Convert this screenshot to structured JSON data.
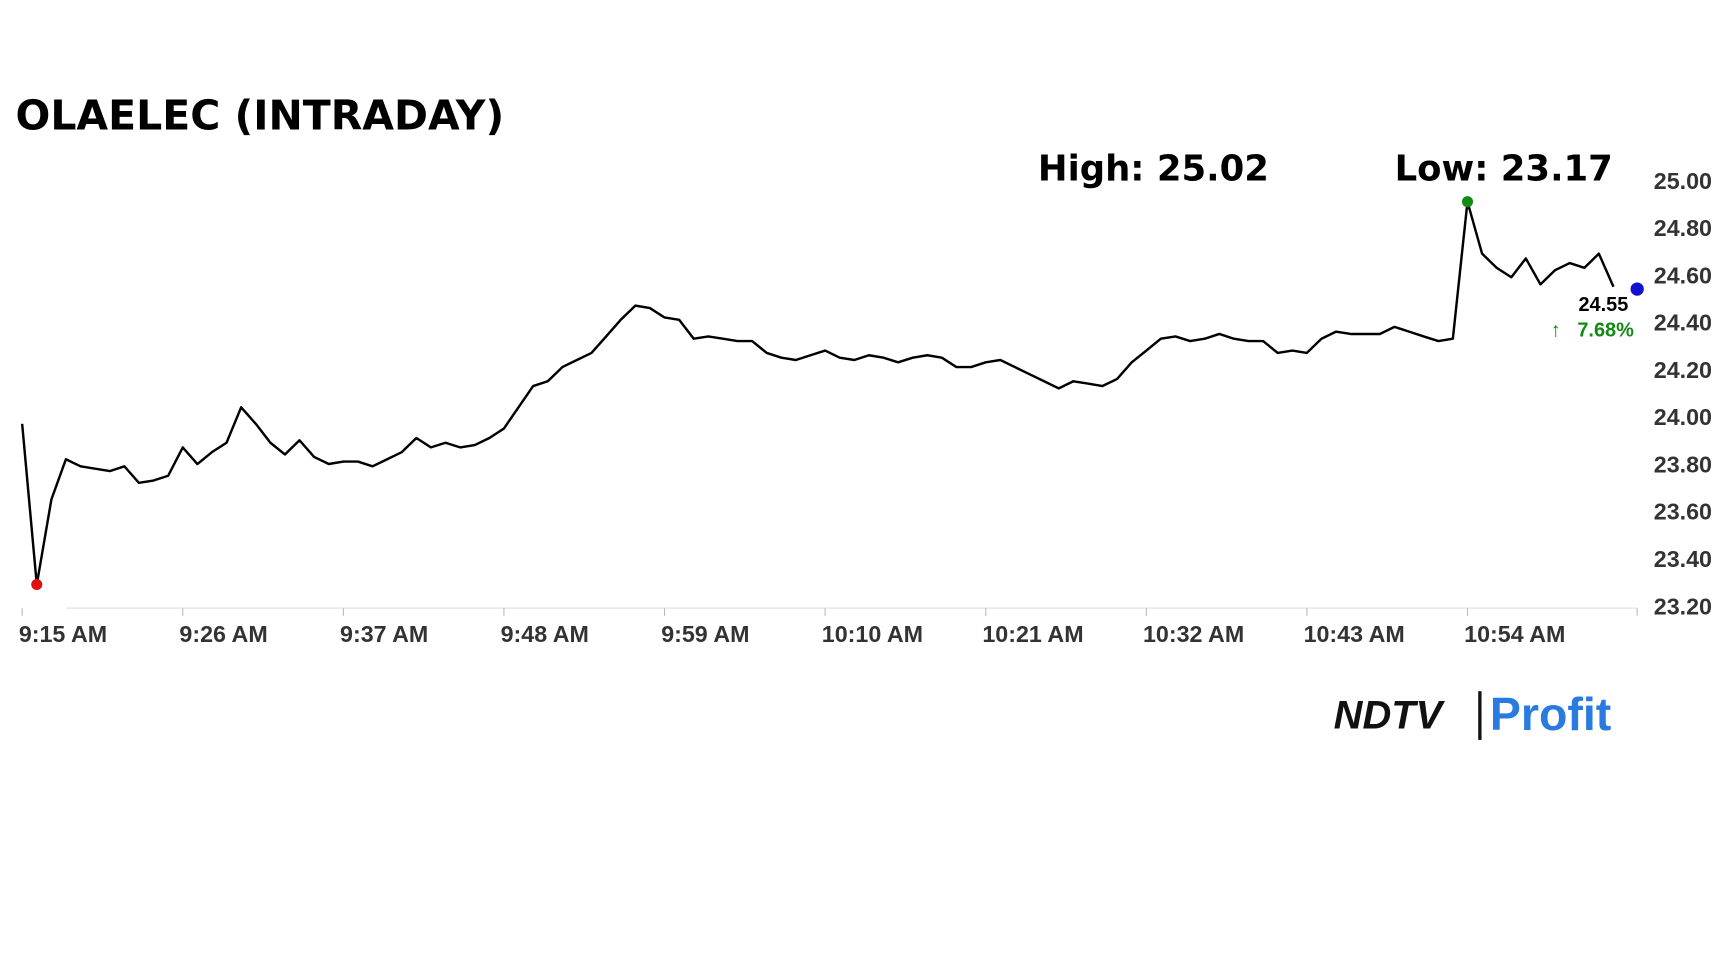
{
  "chart_data": {
    "type": "line",
    "title": "OLAELEC (INTRADAY)",
    "high_label": "High: 25.02",
    "low_label": "Low: 23.17",
    "last_price": 24.55,
    "change": {
      "value": 7.68,
      "label": "7.68%"
    },
    "brand": {
      "left": "NDTV",
      "right": "Profit"
    },
    "ylim": [
      23.2,
      25.0
    ],
    "yticks": [
      {
        "value": 23.2,
        "label": "23.20"
      },
      {
        "value": 23.4,
        "label": "23.40"
      },
      {
        "value": 23.6,
        "label": "23.60"
      },
      {
        "value": 23.8,
        "label": "23.80"
      },
      {
        "value": 24.0,
        "label": "24.00"
      },
      {
        "value": 24.2,
        "label": "24.20"
      },
      {
        "value": 24.4,
        "label": "24.40"
      },
      {
        "value": 24.6,
        "label": "24.60"
      },
      {
        "value": 24.8,
        "label": "24.80"
      },
      {
        "value": 25.0,
        "label": "25.00"
      }
    ],
    "x": [
      "9:15 AM",
      null,
      null,
      null,
      null,
      null,
      null,
      null,
      null,
      null,
      null,
      "9:26 AM",
      null,
      null,
      null,
      null,
      null,
      null,
      null,
      null,
      null,
      null,
      "9:37 AM",
      null,
      null,
      null,
      null,
      null,
      null,
      null,
      null,
      null,
      null,
      "9:48 AM",
      null,
      null,
      null,
      null,
      null,
      null,
      null,
      null,
      null,
      null,
      "9:59 AM",
      null,
      null,
      null,
      null,
      null,
      null,
      null,
      null,
      null,
      null,
      "10:10 AM",
      null,
      null,
      null,
      null,
      null,
      null,
      null,
      null,
      null,
      null,
      "10:21 AM",
      null,
      null,
      null,
      null,
      null,
      null,
      null,
      null,
      null,
      null,
      "10:32 AM",
      null,
      null,
      null,
      null,
      null,
      null,
      null,
      null,
      null,
      null,
      "10:43 AM",
      null,
      null,
      null,
      null,
      null,
      null,
      null,
      null,
      null,
      null,
      "10:54 AM",
      null,
      null,
      null,
      null,
      null,
      null,
      null,
      null,
      null,
      null
    ],
    "series": [
      {
        "color": "#000000",
        "values": [
          23.98,
          23.3,
          23.66,
          23.83,
          23.8,
          23.79,
          23.78,
          23.8,
          23.73,
          23.74,
          23.76,
          23.88,
          23.81,
          23.86,
          23.9,
          24.05,
          23.98,
          23.9,
          23.85,
          23.91,
          23.84,
          23.81,
          23.82,
          23.82,
          23.8,
          23.83,
          23.86,
          23.92,
          23.88,
          23.9,
          23.88,
          23.89,
          23.92,
          23.96,
          24.05,
          24.14,
          24.16,
          24.22,
          24.25,
          24.28,
          24.35,
          24.42,
          24.48,
          24.47,
          24.43,
          24.42,
          24.34,
          24.35,
          24.34,
          24.33,
          24.33,
          24.28,
          24.26,
          24.25,
          24.27,
          24.29,
          24.26,
          24.25,
          24.27,
          24.26,
          24.24,
          24.26,
          24.27,
          24.26,
          24.22,
          24.22,
          24.24,
          24.25,
          24.22,
          24.19,
          24.16,
          24.13,
          24.16,
          24.15,
          24.14,
          24.17,
          24.24,
          24.29,
          24.34,
          24.35,
          24.33,
          24.34,
          24.36,
          24.34,
          24.33,
          24.33,
          24.28,
          24.29,
          24.28,
          24.34,
          24.37,
          24.36,
          24.36,
          24.36,
          24.39,
          24.37,
          24.35,
          24.33,
          24.34,
          24.92,
          24.7,
          24.64,
          24.6,
          24.68,
          24.57,
          24.63,
          24.66,
          24.64,
          24.7,
          24.56
        ]
      }
    ]
  }
}
